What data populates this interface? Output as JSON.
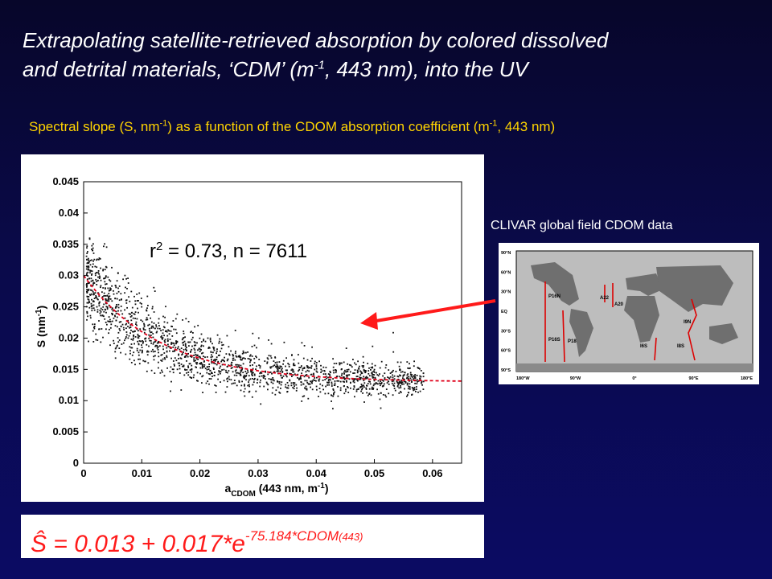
{
  "slide": {
    "title_line1": "Extrapolating satellite-retrieved absorption by colored dissolved",
    "title_line2_a": "and detrital materials, ‘CDM’ (m",
    "title_line2_sup": "-1",
    "title_line2_b": ", 443 nm), into the UV",
    "subtitle_a": "Spectral slope (S, nm",
    "subtitle_sup1": "-1",
    "subtitle_b": ") as a function of the CDOM absorption coefficient (m",
    "subtitle_sup2": "-1",
    "subtitle_c": ", 443 nm)",
    "map_caption": "CLIVAR global field CDOM data",
    "equation_main": "Ŝ = 0.013 + 0.017*e",
    "equation_exp": "-75.184*CDOM",
    "equation_sub": "(443)",
    "colors": {
      "background": "#0a0a4a",
      "title": "#ffffff",
      "subtitle": "#ffd400",
      "equation": "#ff1a1a",
      "arrow": "#ff1a1a"
    }
  },
  "chart_data": {
    "type": "scatter",
    "annotation_r2": "r",
    "annotation_r2_sup": "2",
    "annotation_rest": " = 0.73, n = 7611",
    "ylabel": "S (nm",
    "ylabel_sup": "-1",
    "ylabel_end": ")",
    "xlabel_main": "a",
    "xlabel_sub": "CDOM",
    "xlabel_rest": " (443 nm, m",
    "xlabel_sup": "-1",
    "xlabel_end": ")",
    "xlim": [
      0,
      0.065
    ],
    "ylim": [
      0,
      0.045
    ],
    "x_ticks": [
      0,
      0.01,
      0.02,
      0.03,
      0.04,
      0.05,
      0.06
    ],
    "x_tick_labels": [
      "0",
      "0.01",
      "0.02",
      "0.03",
      "0.04",
      "0.05",
      "0.06"
    ],
    "y_ticks": [
      0,
      0.005,
      0.01,
      0.015,
      0.02,
      0.025,
      0.03,
      0.035,
      0.04,
      0.045
    ],
    "y_tick_labels": [
      "0",
      "0.005",
      "0.01",
      "0.015",
      "0.02",
      "0.025",
      "0.03",
      "0.035",
      "0.04",
      "0.045"
    ],
    "fit": {
      "a": 0.013,
      "b": 0.017,
      "k": -75.184,
      "x_range": [
        0,
        0.065
      ],
      "color": "#e0001a",
      "style": "dashed"
    },
    "points_color": "#111111",
    "points_description_range": {
      "x": [
        0.0005,
        0.06
      ],
      "n": 7611
    },
    "grid": false
  },
  "map": {
    "lat_labels": [
      "90°N",
      "60°N",
      "30°N",
      "EQ",
      "30°S",
      "60°S",
      "90°S"
    ],
    "lon_labels": [
      "180°W",
      "90°W",
      "0°",
      "90°E",
      "180°E"
    ],
    "cruise_labels": [
      "P16N",
      "P16S",
      "P18",
      "A22",
      "A20",
      "I6S",
      "I8S",
      "I9N"
    ]
  }
}
